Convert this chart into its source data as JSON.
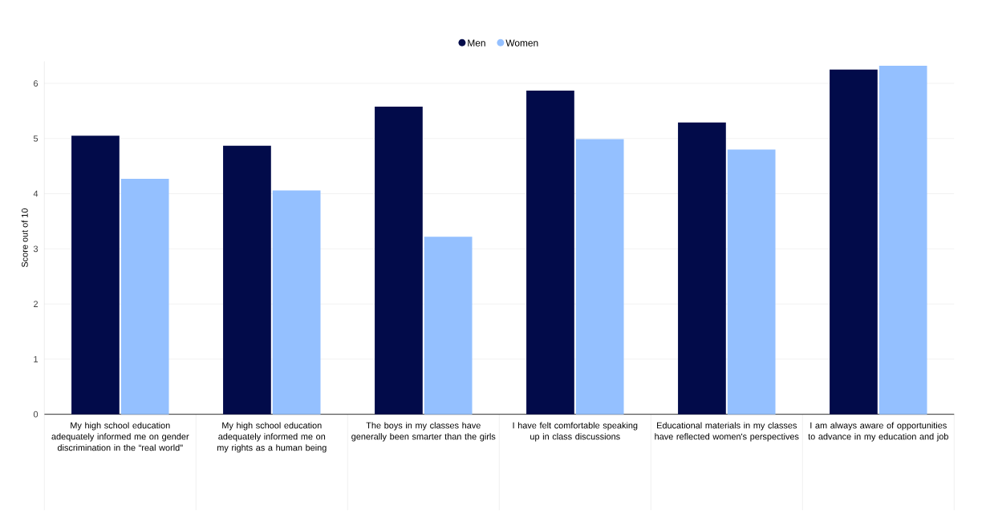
{
  "chart_data": {
    "type": "bar",
    "ylabel": "Score out of 10",
    "categories": [
      "My high school education adequately informed me on gender discrimination in the “real world\"",
      "My high school education adequately informed me on my rights as a human being",
      "The boys in my classes have generally been smarter than the girls",
      "I have felt comfortable speaking up in class discussions",
      "Educational materials in my classes have reflected women's perspectives",
      "I am always aware of opportunities to advance in my education and job"
    ],
    "series": [
      {
        "name": "Men",
        "color": "#020b4a",
        "values": [
          5.05,
          4.87,
          5.58,
          5.87,
          5.29,
          6.25
        ]
      },
      {
        "name": "Women",
        "color": "#94c0ff",
        "values": [
          4.27,
          4.06,
          3.22,
          4.99,
          4.8,
          6.32
        ]
      }
    ],
    "ylim": [
      0,
      6.4
    ],
    "yticks": [
      0,
      1,
      2,
      3,
      4,
      5,
      6
    ],
    "grid": "y",
    "legend": "top"
  }
}
